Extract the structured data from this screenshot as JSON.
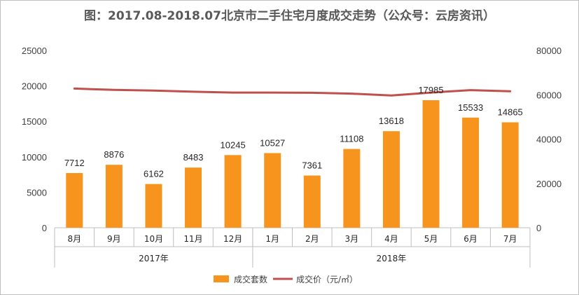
{
  "title": "图：2017.08-2018.07北京市二手住宅月度成交走势（公众号：云房资讯）",
  "chart_data": {
    "type": "bar",
    "categories": [
      "8月",
      "9月",
      "10月",
      "11月",
      "12月",
      "1月",
      "2月",
      "3月",
      "4月",
      "5月",
      "6月",
      "7月"
    ],
    "groups": [
      {
        "label": "2017年",
        "categories": [
          "8月",
          "9月",
          "10月",
          "11月",
          "12月"
        ]
      },
      {
        "label": "2018年",
        "categories": [
          "1月",
          "2月",
          "3月",
          "4月",
          "5月",
          "6月",
          "7月"
        ]
      }
    ],
    "series": [
      {
        "name": "成交套数",
        "type": "bar",
        "axis": "left",
        "color": "#f7941d",
        "values": [
          7712,
          8876,
          6162,
          8483,
          10245,
          10527,
          7361,
          11108,
          13618,
          17985,
          15533,
          14865
        ]
      },
      {
        "name": "成交价（元/㎡）",
        "type": "line",
        "axis": "right",
        "color": "#c0504d",
        "values": [
          62800,
          62200,
          61900,
          61400,
          61000,
          61000,
          60900,
          60500,
          59700,
          61000,
          62100,
          61600
        ]
      }
    ],
    "left_axis": {
      "ylim": [
        0,
        25000
      ],
      "ticks": [
        "0",
        "5000",
        "10000",
        "15000",
        "20000",
        "25000"
      ]
    },
    "right_axis": {
      "ylim": [
        0,
        80000
      ],
      "ticks": [
        "0",
        "20000",
        "40000",
        "60000",
        "80000"
      ]
    },
    "grid": false,
    "legend": "bottom"
  }
}
